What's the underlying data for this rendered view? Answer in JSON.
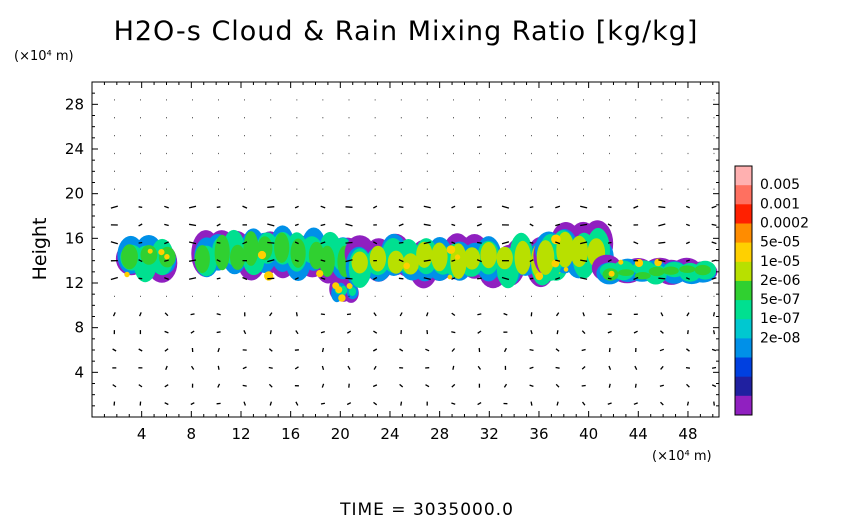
{
  "chart_data": {
    "type": "heatmap",
    "title": "H2O-s Cloud & Rain Mixing Ratio [kg/kg]",
    "ylabel": "Height",
    "y_unit": "(×10⁴ m)",
    "x_unit": "(×10⁴ m)",
    "xlim": [
      0,
      50.5
    ],
    "ylim": [
      0,
      30
    ],
    "x_ticks": [
      4,
      8,
      12,
      16,
      20,
      24,
      28,
      32,
      36,
      40,
      44,
      48
    ],
    "y_ticks": [
      4,
      8,
      12,
      16,
      20,
      24,
      28
    ],
    "x_tick_labels": [
      "4",
      "8",
      "12",
      "16",
      "20",
      "24",
      "28",
      "32",
      "36",
      "40",
      "44",
      "48"
    ],
    "y_tick_labels": [
      "4",
      "8",
      "12",
      "16",
      "20",
      "24",
      "28"
    ],
    "colorbar": {
      "labels": [
        "0.005",
        "0.001",
        "0.0002",
        "5e-05",
        "1e-05",
        "2e-06",
        "5e-07",
        "1e-07",
        "2e-08"
      ],
      "colors": [
        "#ffb0b0",
        "#ff7060",
        "#ff2000",
        "#ff8c00",
        "#ffd000",
        "#b8e000",
        "#30d030",
        "#00e090",
        "#00c8d0",
        "#0090e8",
        "#0040e0",
        "#2020a0",
        "#9020c0"
      ]
    },
    "cloud_regions": [
      {
        "x": [
          2.5,
          6.5
        ],
        "y": [
          12.5,
          16.0
        ],
        "level": "1e-05"
      },
      {
        "x": [
          8.5,
          21.0
        ],
        "y": [
          12.5,
          16.5
        ],
        "level": "1e-05"
      },
      {
        "x": [
          19.5,
          21.0
        ],
        "y": [
          10.5,
          12.0
        ],
        "level": "5e-05"
      },
      {
        "x": [
          21.0,
          38.0
        ],
        "y": [
          12.0,
          16.0
        ],
        "level": "5e-05"
      },
      {
        "x": [
          36.0,
          41.5
        ],
        "y": [
          12.5,
          17.0
        ],
        "level": "5e-05"
      },
      {
        "x": [
          41.0,
          50.0
        ],
        "y": [
          12.0,
          14.0
        ],
        "level": "1e-05"
      }
    ],
    "footer": "TIME  =  3035000.0"
  }
}
